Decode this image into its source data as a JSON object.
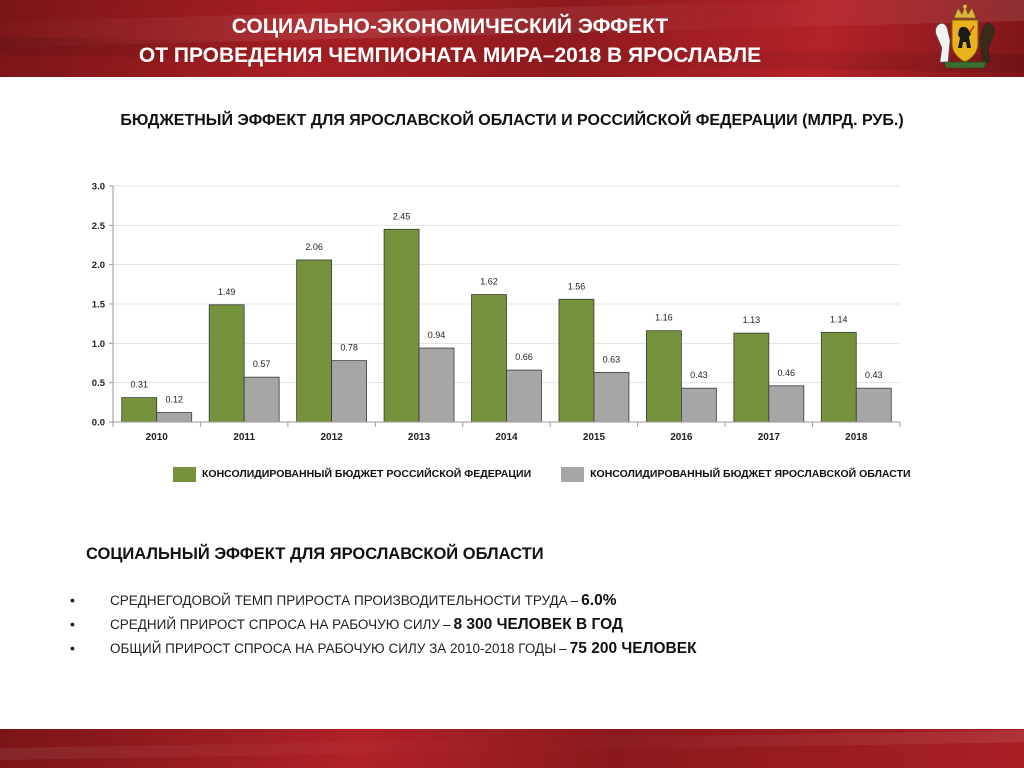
{
  "header": {
    "title_line1": "СОЦИАЛЬНО-ЭКОНОМИЧЕСКИЙ ЭФФЕКТ",
    "title_line2": "ОТ ПРОВЕДЕНИЯ ЧЕМПИОНАТА МИРА–2018 В ЯРОСЛАВЛЕ",
    "emblem_icon": "coat-of-arms-icon"
  },
  "chart_title": "БЮДЖЕТНЫЙ ЭФФЕКТ ДЛЯ ЯРОСЛАВСКОЙ ОБЛАСТИ И РОССИЙСКОЙ ФЕДЕРАЦИИ (МЛРД. РУБ.)",
  "chart_data": {
    "type": "bar",
    "categories": [
      "2010",
      "2011",
      "2012",
      "2013",
      "2014",
      "2015",
      "2016",
      "2017",
      "2018"
    ],
    "series": [
      {
        "name": "КОНСОЛИДИРОВАННЫЙ БЮДЖЕТ РОССИЙСКОЙ ФЕДЕРАЦИИ",
        "color": "#76923c",
        "values": [
          0.31,
          1.49,
          2.06,
          2.45,
          1.62,
          1.56,
          1.16,
          1.13,
          1.14
        ],
        "labels": [
          "0.31",
          "1.49",
          "2.06",
          "2.45",
          "1.62",
          "1.56",
          "1.16",
          "1.13",
          "1.14"
        ]
      },
      {
        "name": "КОНСОЛИДИРОВАННЫЙ БЮДЖЕТ ЯРОСЛАВСКОЙ ОБЛАСТИ",
        "color": "#a6a6a6",
        "values": [
          0.12,
          0.57,
          0.78,
          0.94,
          0.66,
          0.63,
          0.43,
          0.46,
          0.43
        ],
        "labels": [
          "0.12",
          "0.57",
          "0.78",
          "0.94",
          "0.66",
          "0.63",
          "0.43",
          "0.46",
          "0.43"
        ]
      }
    ],
    "y_ticks": [
      "0.0",
      "0.5",
      "1.0",
      "1.5",
      "2.0",
      "2.5",
      "3.0"
    ],
    "ylim": [
      0,
      3
    ],
    "grid": true,
    "legend_position": "bottom"
  },
  "social": {
    "title": "СОЦИАЛЬНЫЙ ЭФФЕКТ ДЛЯ ЯРОСЛАВСКОЙ ОБЛАСТИ",
    "bullet_glyph": "•",
    "items": [
      {
        "text": "СРЕДНЕГОДОВОЙ ТЕМП ПРИРОСТА ПРОИЗВОДИТЕЛЬНОСТИ ТРУДА",
        "dash": "–",
        "value": "6.0%"
      },
      {
        "text": "СРЕДНИЙ ПРИРОСТ СПРОСА НА РАБОЧУЮ СИЛУ",
        "dash": "–",
        "value": "8 300 ЧЕЛОВЕК В ГОД"
      },
      {
        "text": "ОБЩИЙ ПРИРОСТ СПРОСА НА РАБОЧУЮ СИЛУ ЗА 2010-2018 ГОДЫ",
        "dash": "–",
        "value": "75 200 ЧЕЛОВЕК"
      }
    ]
  }
}
